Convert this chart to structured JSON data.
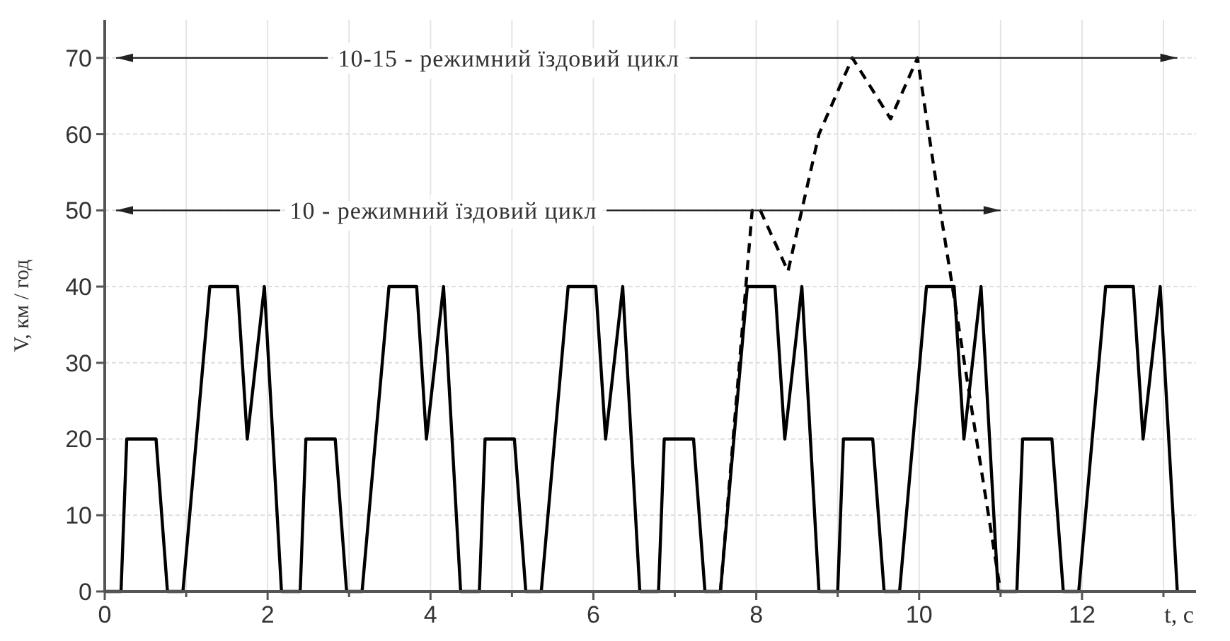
{
  "chart_data": {
    "type": "line",
    "xlabel": "t, c",
    "ylabel": "V, км / год",
    "xlim": [
      0,
      13.4
    ],
    "ylim": [
      0,
      75
    ],
    "xticks": [
      0,
      {
        "value": 1,
        "label": null
      },
      2,
      {
        "value": 3,
        "label": null
      },
      4,
      {
        "value": 5,
        "label": null
      },
      6,
      {
        "value": 7,
        "label": null
      },
      8,
      {
        "value": 9,
        "label": null
      },
      10,
      {
        "value": 11,
        "label": null
      },
      12,
      {
        "value": 13,
        "label": null
      }
    ],
    "yticks": [
      0,
      10,
      20,
      30,
      40,
      50,
      60,
      70
    ],
    "grid": true,
    "series": [
      {
        "color": "#000000",
        "line_style": "solid",
        "x": [
          0,
          0.2,
          0.27,
          0.63,
          0.77,
          0.96,
          1.29,
          1.63,
          1.75,
          1.96,
          2.17,
          2.2,
          2.4,
          2.47,
          2.83,
          2.97,
          3.16,
          3.49,
          3.83,
          3.95,
          4.16,
          4.37,
          4.4,
          4.6,
          4.67,
          5.03,
          5.17,
          5.36,
          5.69,
          6.03,
          6.15,
          6.36,
          6.57,
          6.6,
          6.8,
          6.87,
          7.23,
          7.37,
          7.56,
          7.89,
          8.23,
          8.35,
          8.56,
          8.77,
          8.8,
          9.0,
          9.07,
          9.43,
          9.57,
          9.76,
          10.09,
          10.43,
          10.55,
          10.76,
          10.97,
          11.0,
          11.2,
          11.27,
          11.63,
          11.77,
          11.96,
          12.29,
          12.63,
          12.75,
          12.96,
          13.17
        ],
        "values": [
          0,
          0,
          20,
          20,
          0,
          0,
          40,
          40,
          20,
          40,
          0,
          0,
          0,
          20,
          20,
          0,
          0,
          40,
          40,
          20,
          40,
          0,
          0,
          0,
          20,
          20,
          0,
          0,
          40,
          40,
          20,
          40,
          0,
          0,
          0,
          20,
          20,
          0,
          0,
          40,
          40,
          20,
          40,
          0,
          0,
          0,
          20,
          20,
          0,
          0,
          40,
          40,
          20,
          40,
          0,
          0,
          0,
          20,
          20,
          0,
          0,
          40,
          40,
          20,
          40,
          0
        ]
      },
      {
        "color": "#000000",
        "line_style": "dashed",
        "x": [
          7.56,
          7.95,
          8.05,
          8.39,
          8.77,
          9.18,
          9.65,
          9.98,
          10.26,
          11.0
        ],
        "values": [
          0,
          50,
          50,
          42,
          60,
          70,
          62,
          70,
          50,
          0
        ]
      }
    ],
    "annotations": [
      "10-15 - режимний їздовий цикл",
      "10 - режимний їздовий цикл"
    ]
  }
}
